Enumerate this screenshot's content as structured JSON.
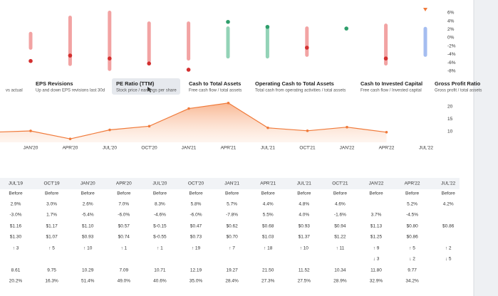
{
  "range_chart": {
    "ylim": [
      -8.9,
      7.35
    ],
    "yticks": [
      {
        "value": 6,
        "label": "6%"
      },
      {
        "value": 4,
        "label": "4%"
      },
      {
        "value": 2,
        "label": "2%"
      },
      {
        "value": 0,
        "label": "0%"
      },
      {
        "value": -2,
        "label": "-2%"
      },
      {
        "value": -4,
        "label": "-4%"
      },
      {
        "value": -6,
        "label": "-6%"
      },
      {
        "value": -8,
        "label": "-8%"
      }
    ],
    "bars": [
      {
        "low": -2.9,
        "high": 1.4,
        "dot": -5.6,
        "color": "#f2a3a3",
        "dot_color": "#d32f2f"
      },
      {
        "low": -6.8,
        "high": 5.3,
        "dot": -4.3,
        "color": "#f2a3a3",
        "dot_color": "#d32f2f"
      },
      {
        "low": -8,
        "high": 6.5,
        "dot": -5,
        "color": "#f2a3a3",
        "dot_color": "#d32f2f"
      },
      {
        "low": -6,
        "high": 3.9,
        "dot": -6.2,
        "color": "#f2a3a3",
        "dot_color": "#d32f2f"
      },
      {
        "low": -5.5,
        "high": 3.9,
        "dot": -7.7,
        "color": "#f2a3a3",
        "dot_color": "#d32f2f"
      },
      {
        "low": -5,
        "high": 2.7,
        "dot": 3.8,
        "color": "#93d3b7",
        "dot_color": "#2e9e6b"
      },
      {
        "low": -5,
        "high": 2.7,
        "dot": 2.6,
        "color": "#93d3b7",
        "dot_color": "#2e9e6b"
      },
      {
        "low": -4.6,
        "high": 2.7,
        "dot": -2.4,
        "color": "#f2a3a3",
        "dot_color": "#d32f2f"
      },
      {
        "low": null,
        "high": null,
        "dot": 2.2,
        "color": "#93d3b7",
        "dot_color": "#2e9e6b"
      },
      {
        "low": -6.7,
        "high": 3.4,
        "dot": -5,
        "color": "#f2a3a3",
        "dot_color": "#d32f2f"
      },
      {
        "low": -4.6,
        "high": 2.6,
        "dot": null,
        "color": "#a5bdf0",
        "dot_color": "#3b6fd6"
      }
    ]
  },
  "metrics": [
    {
      "title": null,
      "subtitle": "vs actual"
    },
    {
      "title": "EPS Revisions",
      "subtitle": "Up and down EPS revisions last 30d"
    },
    {
      "title": "PE Ratio (TTM)",
      "subtitle": "Stock price / earnings per share"
    },
    {
      "title": "Cash to Total Assets",
      "subtitle": "Free cash flow / total assets"
    },
    {
      "title": "Operating Cash to Total Assets",
      "subtitle": "Total cash from operating activities / total assets"
    },
    {
      "title": "Cash to Invested Capital",
      "subtitle": "Free cash flow / Invested capital"
    },
    {
      "title": "Gross Profit Ratio",
      "subtitle": "Gross profit / total assets"
    }
  ],
  "chart_data": {
    "type": "line",
    "categories": [
      null,
      "JAN'20",
      "APR'20",
      "JUL'20",
      "OCT'20",
      "JAN'21",
      "APR'21",
      "JUL'21",
      "OCT'21",
      "JAN'22",
      "APR'22",
      "JUL'22"
    ],
    "values": [
      9.75,
      10.29,
      7.09,
      10.71,
      12.19,
      19.27,
      21.5,
      11.52,
      10.34,
      11.8,
      9.77,
      null
    ],
    "color": "#f07a3a",
    "ylim": [
      4,
      22
    ],
    "yticks": [
      10,
      15,
      20
    ]
  },
  "table": {
    "columns": [
      "JUL'19",
      "OCT'19",
      "JAN'20",
      "APR'20",
      "JUL'20",
      "OCT'20",
      "JAN'21",
      "APR'21",
      "JUL'21",
      "OCT'21",
      "JAN'22",
      "APR'22",
      "JUL'22"
    ],
    "rows": [
      {
        "color": "#222",
        "cells": [
          "Before",
          "Before",
          "Before",
          "Before",
          "Before",
          "Before",
          "Before",
          "Before",
          "Before",
          "Before",
          "Before",
          "Before",
          "Before"
        ]
      },
      {
        "color": "#222",
        "cells": [
          "2.9%",
          "3.0%",
          "2.6%",
          "7.0%",
          "8.3%",
          "5.8%",
          "5.7%",
          "4.4%",
          "4.8%",
          "4.6%",
          null,
          "5.2%",
          "4.2%"
        ]
      },
      {
        "colors": [
          "#d32f2f",
          "#2e9e6b",
          "#d32f2f",
          "#d32f2f",
          "#d32f2f",
          "#d32f2f",
          "#d32f2f",
          "#2e9e6b",
          "#2e9e6b",
          "#d32f2f",
          "#2e9e6b",
          "#d32f2f",
          null
        ],
        "cells": [
          "-3.0%",
          "1.7%",
          "-5.4%",
          "-6.0%",
          "-4.6%",
          "-6.0%",
          "-7.8%",
          "5.5%",
          "4.0%",
          "-1.6%",
          "3.7%",
          "-4.5%",
          null
        ]
      },
      {
        "color": "#222",
        "cells": [
          "$1.16",
          "$1.17",
          "$1.10",
          "$0.57",
          "$-0.15",
          "$0.47",
          "$0.62",
          "$0.68",
          "$0.93",
          "$0.94",
          "$1.13",
          "$0.80",
          "$0.86"
        ]
      },
      {
        "colors": [
          "#2e9e6b",
          "#d32f2f",
          "#d32f2f",
          "#2e9e6b",
          "#d32f2f",
          "#2e9e6b",
          "#2e9e6b",
          "#2e9e6b",
          "#2e9e6b",
          "#2e9e6b",
          "#2e9e6b",
          "#2e9e6b",
          null
        ],
        "cells": [
          "$1.30",
          "$1.07",
          "$0.93",
          "$0.74",
          "$-0.55",
          "$0.73",
          "$0.70",
          "$1.03",
          "$1.37",
          "$1.22",
          "$1.25",
          "$0.86",
          null
        ]
      },
      {
        "color": "#2e9e6b",
        "cells": [
          "↑ 3",
          "↑ 5",
          "↑ 10",
          "↑ 1",
          "↑ 1",
          "↑ 19",
          "↑ 7",
          "↑ 18",
          "↑ 10",
          "↑ 11",
          "↑ 9",
          "↑ 5",
          "↑ 2"
        ]
      },
      {
        "color": "#d32f2f",
        "cells": [
          null,
          null,
          null,
          null,
          null,
          null,
          null,
          null,
          null,
          null,
          "↓ 3",
          "↓ 2",
          "↓ 5"
        ]
      },
      {
        "color": "#222",
        "cells": [
          "8.61",
          "9.75",
          "10.29",
          "7.09",
          "10.71",
          "12.19",
          "19.27",
          "21.50",
          "11.52",
          "10.34",
          "11.80",
          "9.77",
          null
        ]
      },
      {
        "color": "#222",
        "cells": [
          "20.2%",
          "16.3%",
          "51.4%",
          "49.0%",
          "40.6%",
          "35.0%",
          "28.4%",
          "27.3%",
          "27.5%",
          "28.9%",
          "32.9%",
          "34.2%",
          null
        ]
      }
    ]
  }
}
